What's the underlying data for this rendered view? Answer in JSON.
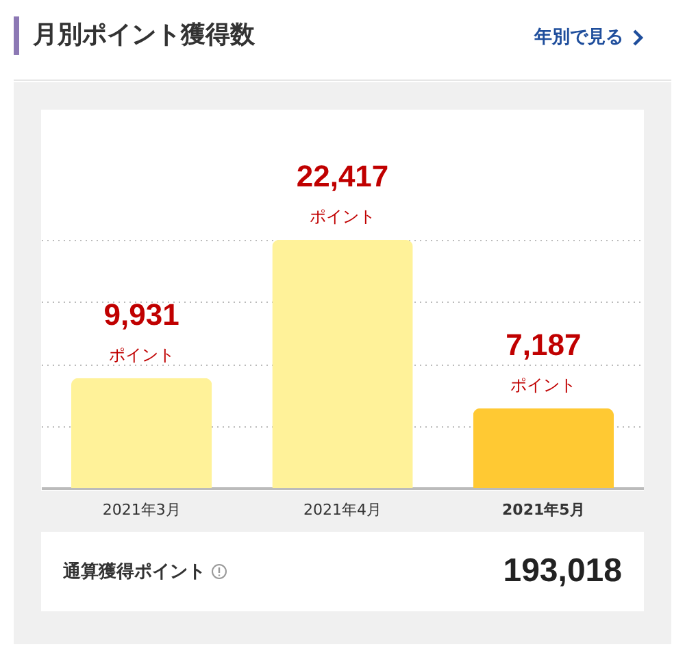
{
  "chart_data": {
    "type": "bar",
    "title": "月別ポイント獲得数",
    "categories": [
      "2021年3月",
      "2021年4月",
      "2021年5月"
    ],
    "values": [
      9931,
      22417,
      7187
    ],
    "colors": [
      "#fff299",
      "#fff299",
      "#ffc933"
    ],
    "value_labels": [
      "9,931",
      "22,417",
      "7,187"
    ],
    "ylim": [
      0,
      22417
    ],
    "yticks": [
      {
        "value": 5604,
        "label": null
      },
      {
        "value": 11208,
        "label": null
      },
      {
        "value": 16813,
        "label": null
      },
      {
        "value": 22417,
        "label": null
      }
    ],
    "grid": "y",
    "tick_labels": "x",
    "annotations": [
      {
        "text": "ポイント",
        "x": "2021年3月",
        "y": 9931
      },
      {
        "text": "ポイント",
        "x": "2021年4月",
        "y": 22417
      },
      {
        "text": "ポイント",
        "x": "2021年5月",
        "y": 7187
      },
      "年別で見る",
      "通算獲得ポイント",
      "193,018"
    ]
  }
}
